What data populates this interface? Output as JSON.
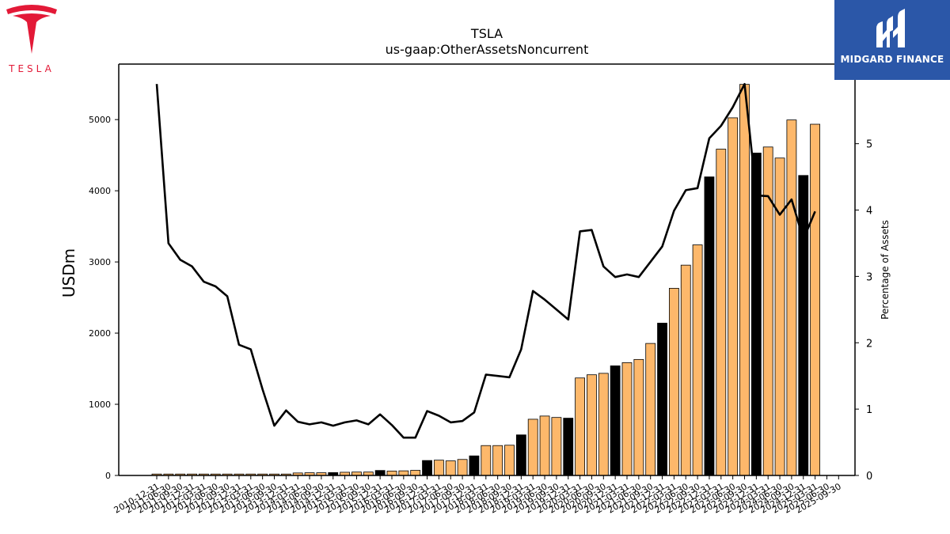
{
  "header": {
    "company_word": "TESLA",
    "brand_name": "MIDGARD FINANCE"
  },
  "colors": {
    "bar_default": "#fdb86b",
    "bar_highlight": "#000000",
    "line": "#000000",
    "tesla_red": "#e31937",
    "brand_blue": "#2b57a8"
  },
  "chart_data": {
    "type": "bar",
    "title": "TSLA",
    "subtitle": "us-gaap:OtherAssetsNoncurrent",
    "ylabel": "USDm",
    "y2label": "Percentage of Assets",
    "ylim": [
      0,
      5780
    ],
    "y2lim": [
      0,
      6.2
    ],
    "yticks": [
      0,
      1000,
      2000,
      3000,
      4000,
      5000
    ],
    "y2ticks": [
      0,
      1,
      2,
      3,
      4,
      5
    ],
    "grid": false,
    "categories": [
      "2010-12-31",
      "2011-06-30",
      "2011-09-30",
      "2011-12-31",
      "2012-03-31",
      "2012-06-30",
      "2012-09-30",
      "2012-12-31",
      "2013-03-31",
      "2013-06-30",
      "2013-09-30",
      "2013-12-31",
      "2014-03-31",
      "2014-06-30",
      "2014-09-30",
      "2014-12-31",
      "2015-03-31",
      "2015-06-30",
      "2015-09-30",
      "2015-12-31",
      "2016-03-31",
      "2016-06-30",
      "2016-09-30",
      "2016-12-31",
      "2017-03-31",
      "2017-06-30",
      "2017-09-30",
      "2017-12-31",
      "2018-03-31",
      "2018-06-30",
      "2018-09-30",
      "2018-12-31",
      "2019-03-31",
      "2019-06-30",
      "2019-09-30",
      "2019-12-31",
      "2020-03-31",
      "2020-06-30",
      "2020-09-30",
      "2020-12-31",
      "2021-03-31",
      "2021-06-30",
      "2021-09-30",
      "2021-12-31",
      "2022-03-31",
      "2022-06-30",
      "2022-09-30",
      "2022-12-31",
      "2023-03-31",
      "2023-06-30",
      "2023-09-30",
      "2023-12-31",
      "2024-03-31",
      "2024-06-30",
      "2024-09-30",
      "2024-12-31",
      "2025-03-31",
      "2025-06-30",
      "2025-09-30"
    ],
    "series": [
      {
        "kind": "bar",
        "values": [
          20,
          20,
          20,
          20,
          20,
          20,
          20,
          20,
          20,
          20,
          20,
          20,
          35,
          38,
          38,
          40,
          45,
          48,
          48,
          70,
          62,
          65,
          72,
          210,
          215,
          205,
          225,
          275,
          420,
          420,
          425,
          570,
          790,
          835,
          815,
          805,
          1370,
          1415,
          1435,
          1540,
          1585,
          1630,
          1855,
          2140,
          2630,
          2955,
          3240,
          4195,
          4585,
          5025,
          5495,
          4530,
          4615,
          4460,
          4995,
          4215,
          4935,
          0,
          0
        ],
        "highlighted": [
          false,
          false,
          false,
          false,
          false,
          false,
          false,
          false,
          false,
          false,
          false,
          false,
          false,
          false,
          false,
          true,
          false,
          false,
          false,
          true,
          false,
          false,
          false,
          true,
          false,
          false,
          false,
          true,
          false,
          false,
          false,
          true,
          false,
          false,
          false,
          true,
          false,
          false,
          false,
          true,
          false,
          false,
          false,
          true,
          false,
          false,
          false,
          true,
          false,
          false,
          false,
          true,
          false,
          false,
          false,
          true,
          false,
          false,
          false
        ]
      },
      {
        "kind": "line",
        "axis": "right",
        "values": [
          5.9,
          3.5,
          3.25,
          3.15,
          2.92,
          2.85,
          2.7,
          1.97,
          1.9,
          1.3,
          0.75,
          0.98,
          0.81,
          0.77,
          0.8,
          0.75,
          0.8,
          0.83,
          0.77,
          0.92,
          0.76,
          0.57,
          0.57,
          0.97,
          0.9,
          0.8,
          0.82,
          0.95,
          1.52,
          1.5,
          1.48,
          1.9,
          2.78,
          2.65,
          2.5,
          2.35,
          3.68,
          3.7,
          3.15,
          2.99,
          3.03,
          2.99,
          3.22,
          3.45,
          3.99,
          4.3,
          4.33,
          5.08,
          5.27,
          5.55,
          5.9,
          4.22,
          4.21,
          3.93,
          4.16,
          3.56,
          3.98,
          null,
          null
        ]
      }
    ]
  }
}
